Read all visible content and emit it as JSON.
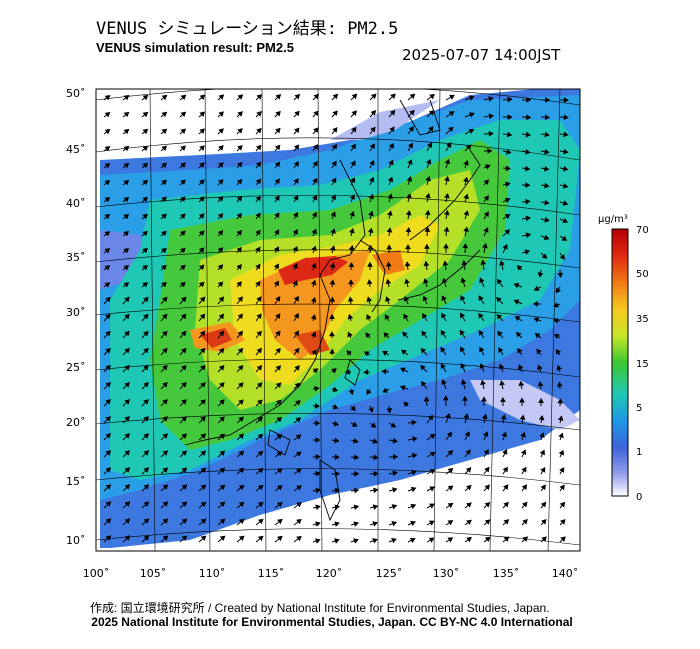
{
  "header": {
    "title_jp": "VENUS シミュレーション結果: PM2.5",
    "title_en": "VENUS simulation result: PM2.5",
    "timestamp": "2025-07-07 14:00JST"
  },
  "map": {
    "lat_labels": [
      "50˚",
      "45˚",
      "40˚",
      "35˚",
      "30˚",
      "25˚",
      "20˚",
      "15˚",
      "10˚"
    ],
    "lon_labels": [
      "100˚",
      "105˚",
      "110˚",
      "115˚",
      "120˚",
      "125˚",
      "130˚",
      "135˚",
      "140˚"
    ],
    "colorbar": {
      "unit": "μg/m³",
      "ticks": [
        "70",
        "50",
        "35",
        "15",
        "5",
        "1",
        "0"
      ],
      "colors": [
        "#c8000a",
        "#f05a14",
        "#f5b41e",
        "#e6e61e",
        "#96dc28",
        "#28c832",
        "#1ec8c8",
        "#1e96e6",
        "#3c64dc",
        "#aab4f0",
        "#ffffff"
      ]
    }
  },
  "footer": {
    "credit_jp": "作成: 国立環境研究所 / Created by National Institute for Environmental Studies, Japan.",
    "copyright": "2025 National Institute for Environmental Studies, Japan. CC BY-NC 4.0 International"
  }
}
